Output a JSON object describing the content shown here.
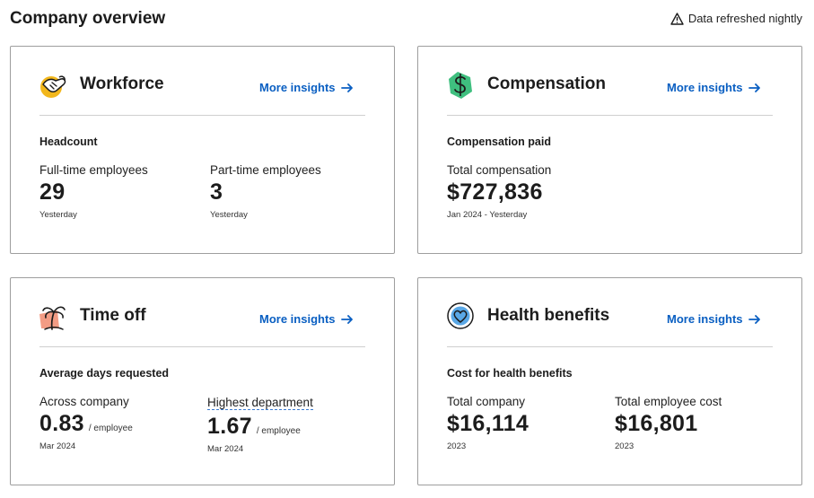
{
  "page": {
    "title": "Company overview",
    "refresh_note": "Data refreshed nightly",
    "refresh_icon": "warning-triangle-icon"
  },
  "colors": {
    "link": "#0a5fc2",
    "card_border": "#9e9e9e",
    "divider": "#cfcfcf",
    "workforce_accent": "#f2b71c",
    "compensation_accent": "#3fbf7f",
    "timeoff_accent": "#f39c84",
    "health_accent": "#5aa8e6"
  },
  "cards": {
    "workforce": {
      "title": "Workforce",
      "icon": "handshake-icon",
      "link": "More insights",
      "section": "Headcount",
      "left": {
        "label": "Full-time employees",
        "value": "29",
        "sub": "Yesterday"
      },
      "right": {
        "label": "Part-time employees",
        "value": "3",
        "sub": "Yesterday"
      }
    },
    "compensation": {
      "title": "Compensation",
      "icon": "dollar-icon",
      "link": "More insights",
      "section": "Compensation paid",
      "left": {
        "label": "Total compensation",
        "value": "$727,836",
        "sub": "Jan 2024 - Yesterday"
      }
    },
    "timeoff": {
      "title": "Time off",
      "icon": "palm-tree-icon",
      "link": "More insights",
      "section": "Average days requested",
      "left": {
        "label": "Across company",
        "value": "0.83",
        "unit": "/ employee",
        "sub": "Mar 2024"
      },
      "right": {
        "label": "Highest department",
        "value": "1.67",
        "unit": "/ employee",
        "sub": "Mar 2024"
      }
    },
    "health": {
      "title": "Health benefits",
      "icon": "heart-icon",
      "link": "More insights",
      "section": "Cost for health benefits",
      "left": {
        "label": "Total company",
        "value": "$16,114",
        "sub": "2023"
      },
      "right": {
        "label": "Total employee cost",
        "value": "$16,801",
        "sub": "2023"
      }
    }
  }
}
